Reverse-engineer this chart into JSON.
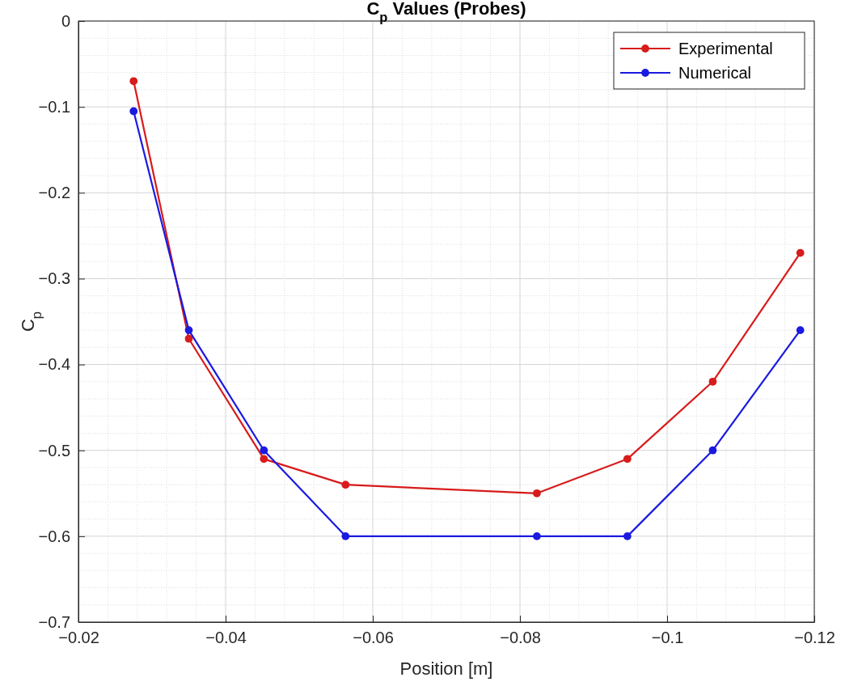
{
  "chart_data": {
    "type": "line",
    "title": "C$_{p}$ Values (Probes)",
    "xlabel": "Position [m]",
    "ylabel": "C$_{p}$",
    "x": [
      -0.0275,
      -0.035,
      -0.0452,
      -0.0563,
      -0.0823,
      -0.0946,
      -0.1062,
      -0.1181
    ],
    "series": [
      {
        "name": "Experimental",
        "color": "#d81b1b",
        "values": [
          -0.07,
          -0.37,
          -0.51,
          -0.54,
          -0.55,
          -0.51,
          -0.42,
          -0.27
        ]
      },
      {
        "name": "Numerical",
        "color": "#1a1ae0",
        "values": [
          -0.105,
          -0.36,
          -0.5,
          -0.6,
          -0.6,
          -0.6,
          -0.5,
          -0.36
        ]
      }
    ],
    "xlim": [
      -0.02,
      -0.12
    ],
    "xticks": [
      -0.02,
      -0.04,
      -0.06,
      -0.08,
      -0.1,
      -0.12
    ],
    "ylim": [
      -0.7,
      0
    ],
    "yticks": [
      -0.7,
      -0.6,
      -0.5,
      -0.4,
      -0.3,
      -0.2,
      -0.1,
      0
    ],
    "grid": true,
    "legend": "top right",
    "marker": "circle",
    "line_style": "solid"
  }
}
